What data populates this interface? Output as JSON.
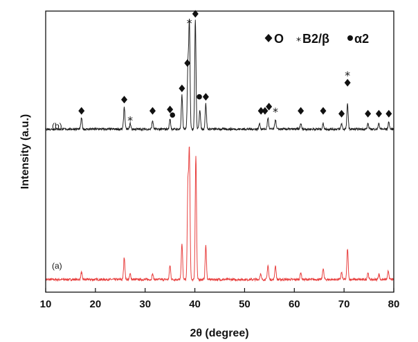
{
  "chart_data": {
    "type": "line",
    "xlabel": "2θ (degree)",
    "ylabel": "Intensity (a.u.)",
    "xlim": [
      10,
      80
    ],
    "xticks": [
      10,
      20,
      30,
      40,
      50,
      60,
      70,
      80
    ],
    "tick_labels": [
      "10",
      "20",
      "30",
      "40",
      "50",
      "60",
      "70",
      "80"
    ],
    "ylim": [
      0,
      1
    ],
    "legend_position": "top-right",
    "legend": [
      {
        "marker": "diamond",
        "label": "O"
      },
      {
        "marker": "asterisk",
        "label": "B2/β"
      },
      {
        "marker": "circle",
        "label": "α2"
      }
    ],
    "series": [
      {
        "name": "(a)",
        "color": "#e8403f",
        "baseline": 0.045,
        "peaks": [
          {
            "x": 17.2,
            "h": 0.025
          },
          {
            "x": 25.8,
            "h": 0.08
          },
          {
            "x": 27.0,
            "h": 0.02
          },
          {
            "x": 31.5,
            "h": 0.02
          },
          {
            "x": 35.0,
            "h": 0.05
          },
          {
            "x": 37.4,
            "h": 0.13
          },
          {
            "x": 38.6,
            "h": 0.33
          },
          {
            "x": 38.9,
            "h": 0.45
          },
          {
            "x": 40.2,
            "h": 0.44
          },
          {
            "x": 42.2,
            "h": 0.12
          },
          {
            "x": 53.2,
            "h": 0.02
          },
          {
            "x": 54.7,
            "h": 0.05
          },
          {
            "x": 56.2,
            "h": 0.05
          },
          {
            "x": 61.3,
            "h": 0.025
          },
          {
            "x": 65.8,
            "h": 0.04
          },
          {
            "x": 69.5,
            "h": 0.025
          },
          {
            "x": 70.7,
            "h": 0.11
          },
          {
            "x": 74.8,
            "h": 0.025
          },
          {
            "x": 77.0,
            "h": 0.02
          },
          {
            "x": 78.9,
            "h": 0.03
          }
        ]
      },
      {
        "name": "(b)",
        "color": "#222222",
        "baseline": 0.58,
        "peaks": [
          {
            "x": 17.2,
            "h": 0.04
          },
          {
            "x": 25.8,
            "h": 0.08
          },
          {
            "x": 27.0,
            "h": 0.02
          },
          {
            "x": 31.5,
            "h": 0.03
          },
          {
            "x": 35.0,
            "h": 0.035
          },
          {
            "x": 37.4,
            "h": 0.12
          },
          {
            "x": 38.6,
            "h": 0.22
          },
          {
            "x": 38.9,
            "h": 0.38
          },
          {
            "x": 40.1,
            "h": 0.39
          },
          {
            "x": 41.0,
            "h": 0.07
          },
          {
            "x": 42.2,
            "h": 0.09
          },
          {
            "x": 53.0,
            "h": 0.02
          },
          {
            "x": 54.7,
            "h": 0.04
          },
          {
            "x": 56.2,
            "h": 0.035
          },
          {
            "x": 61.3,
            "h": 0.02
          },
          {
            "x": 65.8,
            "h": 0.02
          },
          {
            "x": 69.5,
            "h": 0.02
          },
          {
            "x": 70.7,
            "h": 0.09
          },
          {
            "x": 74.8,
            "h": 0.02
          },
          {
            "x": 77.0,
            "h": 0.02
          },
          {
            "x": 79.0,
            "h": 0.025
          }
        ]
      }
    ],
    "phase_markers": [
      {
        "phase": "O",
        "symbol": "diamond",
        "x": 17.2,
        "y": 0.645
      },
      {
        "phase": "O",
        "symbol": "diamond",
        "x": 25.8,
        "y": 0.685
      },
      {
        "phase": "O",
        "symbol": "diamond",
        "x": 31.5,
        "y": 0.645
      },
      {
        "phase": "O",
        "symbol": "diamond",
        "x": 35.0,
        "y": 0.65
      },
      {
        "phase": "O",
        "symbol": "diamond",
        "x": 37.4,
        "y": 0.725
      },
      {
        "phase": "O",
        "symbol": "diamond",
        "x": 38.5,
        "y": 0.815
      },
      {
        "phase": "O",
        "symbol": "diamond",
        "x": 40.1,
        "y": 0.99
      },
      {
        "phase": "O",
        "symbol": "diamond",
        "x": 42.2,
        "y": 0.695
      },
      {
        "phase": "O",
        "symbol": "diamond",
        "x": 53.3,
        "y": 0.645
      },
      {
        "phase": "O",
        "symbol": "diamond",
        "x": 54.1,
        "y": 0.645
      },
      {
        "phase": "O",
        "symbol": "diamond",
        "x": 54.9,
        "y": 0.66
      },
      {
        "phase": "O",
        "symbol": "diamond",
        "x": 61.3,
        "y": 0.645
      },
      {
        "phase": "O",
        "symbol": "diamond",
        "x": 65.8,
        "y": 0.645
      },
      {
        "phase": "O",
        "symbol": "diamond",
        "x": 69.5,
        "y": 0.635
      },
      {
        "phase": "O",
        "symbol": "diamond",
        "x": 70.7,
        "y": 0.745
      },
      {
        "phase": "O",
        "symbol": "diamond",
        "x": 74.8,
        "y": 0.635
      },
      {
        "phase": "O",
        "symbol": "diamond",
        "x": 77.0,
        "y": 0.635
      },
      {
        "phase": "O",
        "symbol": "diamond",
        "x": 79.0,
        "y": 0.635
      },
      {
        "phase": "B2/β",
        "symbol": "asterisk",
        "x": 27.0,
        "y": 0.62
      },
      {
        "phase": "B2/β",
        "symbol": "asterisk",
        "x": 38.9,
        "y": 0.965
      },
      {
        "phase": "B2/β",
        "symbol": "asterisk",
        "x": 56.2,
        "y": 0.65
      },
      {
        "phase": "B2/β",
        "symbol": "asterisk",
        "x": 70.7,
        "y": 0.78
      },
      {
        "phase": "α2",
        "symbol": "circle",
        "x": 35.5,
        "y": 0.63
      },
      {
        "phase": "α2",
        "symbol": "circle",
        "x": 40.9,
        "y": 0.695
      }
    ]
  }
}
